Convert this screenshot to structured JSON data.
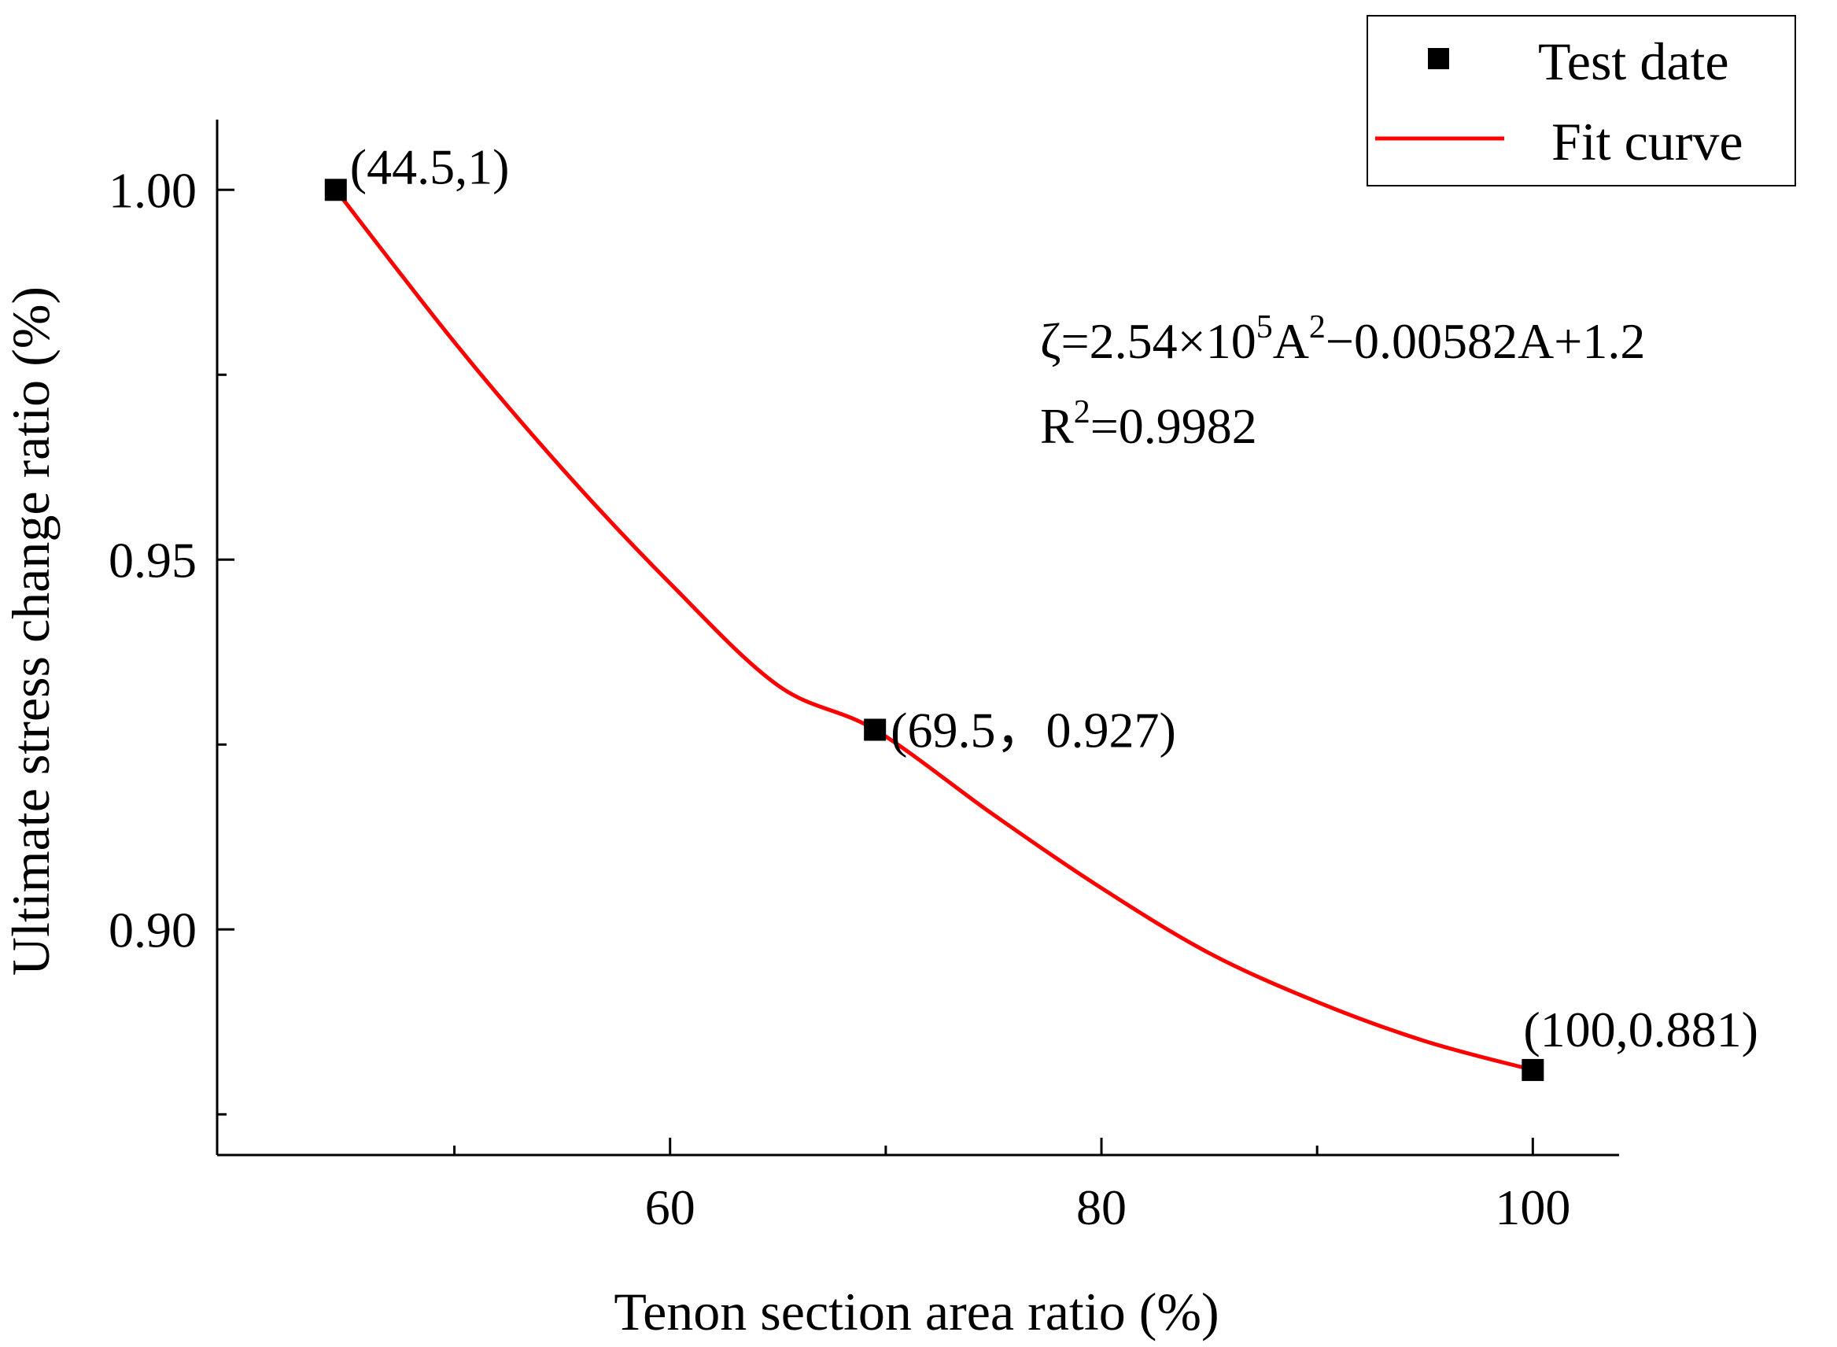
{
  "chart_data": {
    "type": "scatter",
    "title": "",
    "xlabel": "Tenon section area ratio (%)",
    "ylabel": "Ultimate stress change ratio (%)",
    "xlim": [
      39,
      104
    ],
    "ylim": [
      0.8695,
      1.0095
    ],
    "x_ticks": [
      60,
      80,
      100
    ],
    "x_tick_labels": [
      "60",
      "80",
      "100"
    ],
    "x_minor_ticks": [
      50,
      70,
      90
    ],
    "y_ticks": [
      0.9,
      0.95,
      1.0
    ],
    "y_tick_labels": [
      "0.90",
      "0.95",
      "1.00"
    ],
    "y_minor_ticks": [
      0.875,
      0.925,
      0.975
    ],
    "grid": false,
    "legend_position": "top-right",
    "series": [
      {
        "name": "Test date",
        "kind": "scatter",
        "marker": "square",
        "color": "#000000",
        "x": [
          44.5,
          69.5,
          100
        ],
        "y": [
          1.0,
          0.927,
          0.881
        ]
      },
      {
        "name": "Fit curve",
        "kind": "line",
        "color": "#ff0000",
        "x": [
          44.5,
          50,
          55,
          60,
          65,
          69.5,
          75,
          80,
          85,
          90,
          95,
          100
        ],
        "y": [
          1.0,
          0.9794,
          0.9623,
          0.9468,
          0.933,
          0.927,
          0.9155,
          0.9056,
          0.8968,
          0.8902,
          0.8849,
          0.881
        ]
      }
    ],
    "annotations": [
      {
        "text": "(44.5,1)",
        "x": 44.5,
        "y": 1.0
      },
      {
        "text": "(69.5，0.927)",
        "x": 69.5,
        "y": 0.927
      },
      {
        "text": "(100,0.881)",
        "x": 100,
        "y": 0.881
      }
    ],
    "equation": {
      "line1": {
        "base1": "ζ=2.54×10",
        "sup1": "5",
        "base2": "A",
        "sup2": "2",
        "base3": "−0.00582A+1.2"
      },
      "line2": {
        "base1": "R",
        "sup1": "2",
        "base2": "=0.9982"
      }
    }
  }
}
